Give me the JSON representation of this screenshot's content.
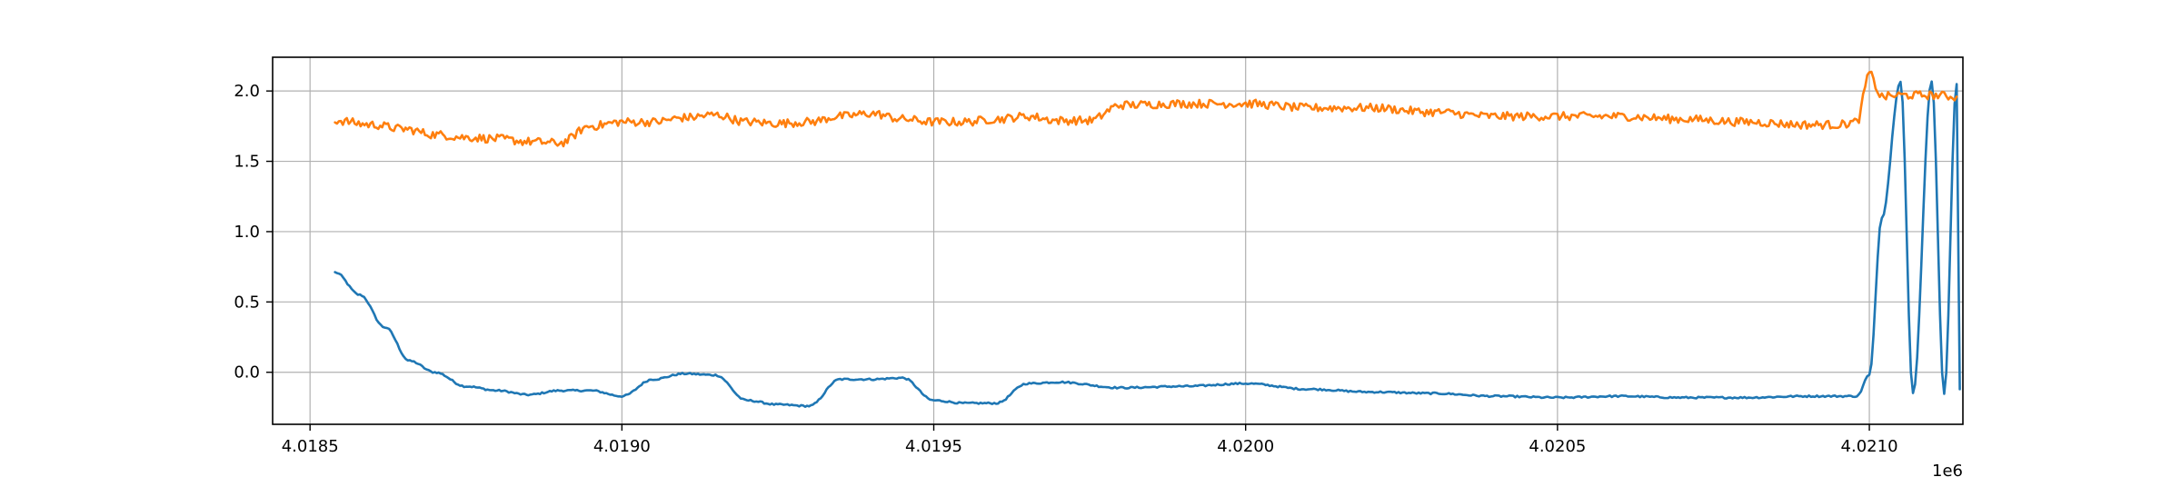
{
  "chart_data": {
    "type": "line",
    "title": "",
    "xlabel": "",
    "ylabel": "",
    "x_offset_label": "1e6",
    "x_scale": 1000000,
    "xlim": [
      4.01844,
      4.02115
    ],
    "ylim": [
      -0.37,
      2.24
    ],
    "xticks": [
      4.0185,
      4.019,
      4.0195,
      4.02,
      4.0205,
      4.021
    ],
    "xtick_labels": [
      "4.0185",
      "4.0190",
      "4.0195",
      "4.0200",
      "4.0205",
      "4.0210"
    ],
    "yticks": [
      0.0,
      0.5,
      1.0,
      1.5,
      2.0
    ],
    "ytick_labels": [
      "0.0",
      "0.5",
      "1.0",
      "1.5",
      "2.0"
    ],
    "grid": true,
    "legend": "none",
    "colors": {
      "series_1": "#1f77b4",
      "series_2": "#ff7f0e",
      "grid": "#b0b0b0",
      "axes": "#000000"
    },
    "series": [
      {
        "color": "#1f77b4",
        "noise": 0.006,
        "x": [
          4.01854,
          4.01858,
          4.01862,
          4.01866,
          4.0187,
          4.01875,
          4.0188,
          4.01885,
          4.0189,
          4.01895,
          4.019,
          4.01905,
          4.0191,
          4.01915,
          4.0192,
          4.01925,
          4.0193,
          4.01935,
          4.0194,
          4.01945,
          4.0195,
          4.01955,
          4.0196,
          4.01965,
          4.0197,
          4.0198,
          4.0199,
          4.02,
          4.0201,
          4.0202,
          4.0203,
          4.0204,
          4.0205,
          4.0206,
          4.0207,
          4.0208,
          4.0209,
          4.02098,
          4.021,
          4.02102,
          4.02105,
          4.02107,
          4.0211,
          4.02112,
          4.02114,
          4.021145
        ],
        "y": [
          0.71,
          0.55,
          0.32,
          0.08,
          0.0,
          -0.1,
          -0.13,
          -0.16,
          -0.13,
          -0.13,
          -0.17,
          -0.05,
          -0.01,
          -0.02,
          -0.2,
          -0.23,
          -0.24,
          -0.05,
          -0.05,
          -0.04,
          -0.2,
          -0.22,
          -0.22,
          -0.08,
          -0.07,
          -0.11,
          -0.1,
          -0.08,
          -0.12,
          -0.14,
          -0.15,
          -0.17,
          -0.18,
          -0.17,
          -0.18,
          -0.18,
          -0.17,
          -0.17,
          -0.02,
          1.1,
          2.07,
          -0.15,
          2.07,
          -0.15,
          2.05,
          -0.12
        ]
      },
      {
        "color": "#ff7f0e",
        "noise": 0.03,
        "x": [
          4.01854,
          4.0186,
          4.01865,
          4.0187,
          4.01875,
          4.0188,
          4.01885,
          4.0189,
          4.01895,
          4.019,
          4.01905,
          4.0191,
          4.01915,
          4.0192,
          4.01925,
          4.0193,
          4.01935,
          4.0194,
          4.01945,
          4.0195,
          4.01955,
          4.0196,
          4.01965,
          4.0197,
          4.01975,
          4.0198,
          4.0199,
          4.02,
          4.0201,
          4.0202,
          4.0203,
          4.0204,
          4.0205,
          4.0206,
          4.0207,
          4.0208,
          4.0209,
          4.02095,
          4.02098,
          4.021,
          4.02102,
          4.02105,
          4.0211,
          4.02114
        ],
        "y": [
          1.79,
          1.76,
          1.73,
          1.69,
          1.67,
          1.66,
          1.64,
          1.63,
          1.75,
          1.78,
          1.78,
          1.81,
          1.83,
          1.78,
          1.77,
          1.78,
          1.82,
          1.84,
          1.8,
          1.78,
          1.78,
          1.8,
          1.82,
          1.79,
          1.79,
          1.9,
          1.91,
          1.91,
          1.88,
          1.88,
          1.85,
          1.82,
          1.82,
          1.82,
          1.8,
          1.78,
          1.76,
          1.76,
          1.78,
          2.12,
          1.96,
          1.97,
          1.97,
          1.96
        ]
      }
    ]
  }
}
